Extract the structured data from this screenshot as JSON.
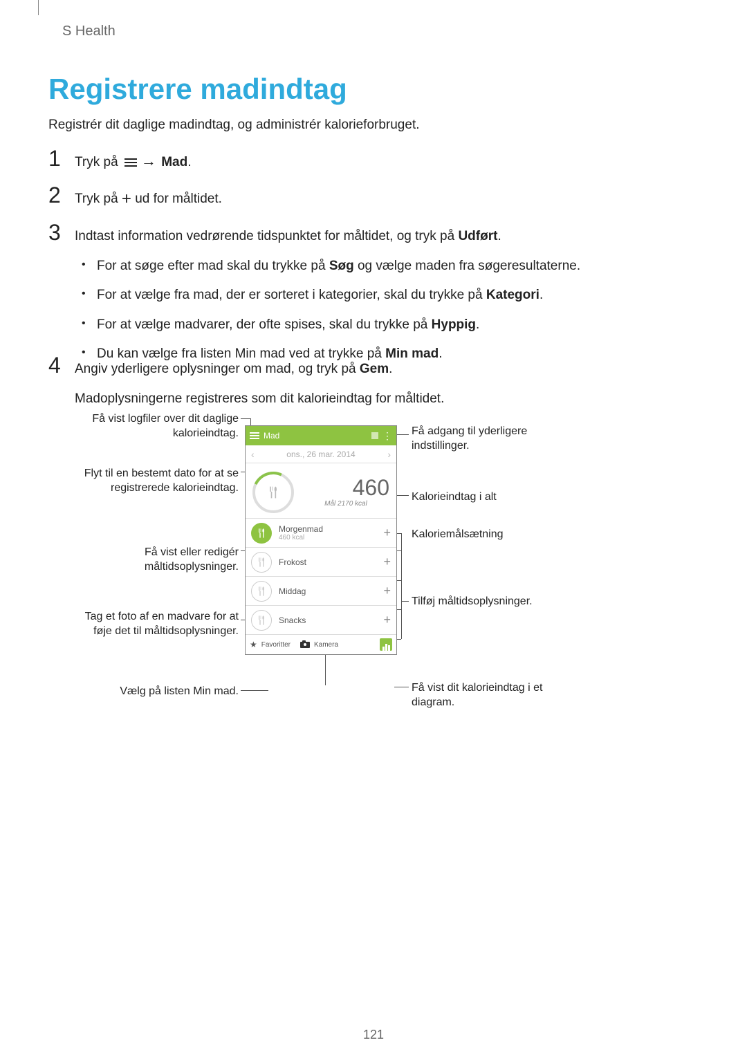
{
  "colors": {
    "heading": "#2faadc",
    "green": "#8ec341",
    "text": "#222222",
    "muted": "#888888"
  },
  "header": "S Health",
  "heading": "Registrere madindtag",
  "intro": "Registrér dit daglige madindtag, og administrér kalorieforbruget.",
  "steps": {
    "s1": {
      "num": "1",
      "pre": "Tryk på ",
      "post": " → ",
      "bold": "Mad",
      "end": "."
    },
    "s2": {
      "num": "2",
      "pre": "Tryk på ",
      "post": " ud for måltidet."
    },
    "s3": {
      "num": "3",
      "text_a": "Indtast information vedrørende tidspunktet for måltidet, og tryk på ",
      "bold_a": "Udført",
      "text_b": ".",
      "bullets": [
        {
          "pre": "For at søge efter mad skal du trykke på ",
          "b": "Søg",
          "post": " og vælge maden fra søgeresultaterne."
        },
        {
          "pre": "For at vælge fra mad, der er sorteret i kategorier, skal du trykke på ",
          "b": "Kategori",
          "post": "."
        },
        {
          "pre": "For at vælge madvarer, der ofte spises, skal du trykke på ",
          "b": "Hyppig",
          "post": "."
        },
        {
          "pre": "Du kan vælge fra listen Min mad ved at trykke på ",
          "b": "Min mad",
          "post": "."
        }
      ]
    },
    "s4": {
      "num": "4",
      "text_a": "Angiv yderligere oplysninger om mad, og tryk på ",
      "bold_a": "Gem",
      "text_b": ".",
      "para2": "Madoplysningerne registreres som dit kalorieindtag for måltidet."
    }
  },
  "callouts": {
    "l1": "Få vist logfiler over dit daglige kalorieindtag.",
    "l2": "Flyt til en bestemt dato for at se registrerede kalorieindtag.",
    "l3": "Få vist eller redigér måltidsoplysninger.",
    "l4": "Tag et foto af en madvare for at føje det til måltidsoplysninger.",
    "l5": "Vælg på listen Min mad.",
    "r1": "Få adgang til yderligere indstillinger.",
    "r2": "Kalorieindtag i alt",
    "r3": "Kaloriemålsætning",
    "r4": "Tilføj måltidsoplysninger.",
    "r5": "Få vist dit kalorieindtag i et diagram."
  },
  "phone": {
    "title": "Mad",
    "date": "ons., 26 mar. 2014",
    "calorie_total": "460",
    "goal_label": "Mål 2170 kcal",
    "meals": [
      {
        "name": "Morgenmad",
        "sub": "460 kcal",
        "active": true
      },
      {
        "name": "Frokost",
        "sub": "",
        "active": false
      },
      {
        "name": "Middag",
        "sub": "",
        "active": false
      },
      {
        "name": "Snacks",
        "sub": "",
        "active": false
      }
    ],
    "fav": "Favoritter",
    "cam": "Kamera"
  },
  "page_num": "121"
}
